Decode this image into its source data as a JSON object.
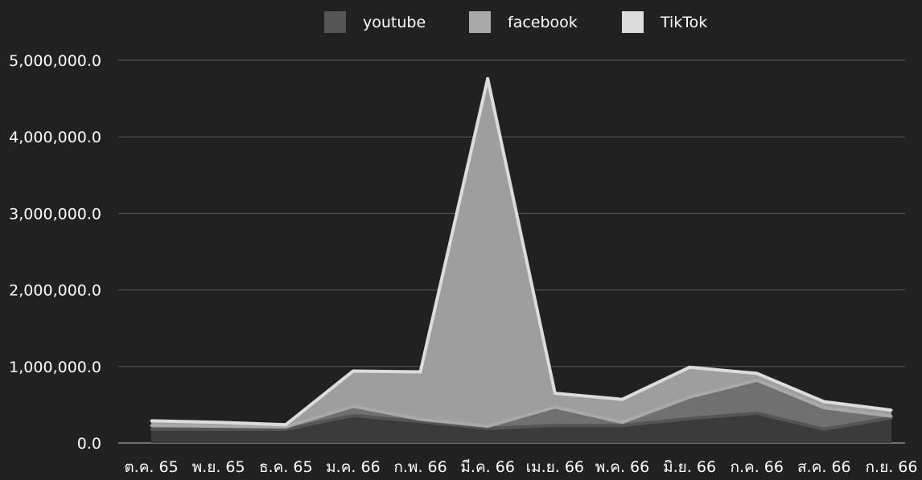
{
  "chart_data": {
    "type": "area",
    "stacked": true,
    "categories": [
      "ต.ค. 65",
      "พ.ย. 65",
      "ธ.ค. 65",
      "ม.ค. 66",
      "ก.พ. 66",
      "มี.ค. 66",
      "เม.ย. 66",
      "พ.ค. 66",
      "มิ.ย. 66",
      "ก.ค. 66",
      "ส.ค. 66",
      "ก.ย. 66"
    ],
    "series": [
      {
        "name": "youtube",
        "color": "#555555",
        "values": [
          180000,
          180000,
          180000,
          360000,
          280000,
          190000,
          230000,
          230000,
          320000,
          390000,
          180000,
          330000
        ]
      },
      {
        "name": "facebook",
        "color": "#a9a9a9",
        "values": [
          50000,
          40000,
          30000,
          120000,
          30000,
          30000,
          240000,
          40000,
          280000,
          430000,
          280000,
          20000
        ]
      },
      {
        "name": "TikTok",
        "color": "#dcdcdc",
        "values": [
          60000,
          50000,
          30000,
          460000,
          620000,
          4540000,
          180000,
          300000,
          390000,
          90000,
          80000,
          80000
        ]
      }
    ],
    "layer_fill": [
      "#3b3b3b",
      "#707070",
      "#9e9e9e"
    ],
    "y_tick_labels": [
      "0.0",
      "1,000,000.0",
      "2,000,000.0",
      "3,000,000.0",
      "4,000,000.0",
      "5,000,000.0"
    ],
    "ylim": [
      0,
      5000000
    ],
    "grid": true,
    "legend_position": "top"
  }
}
